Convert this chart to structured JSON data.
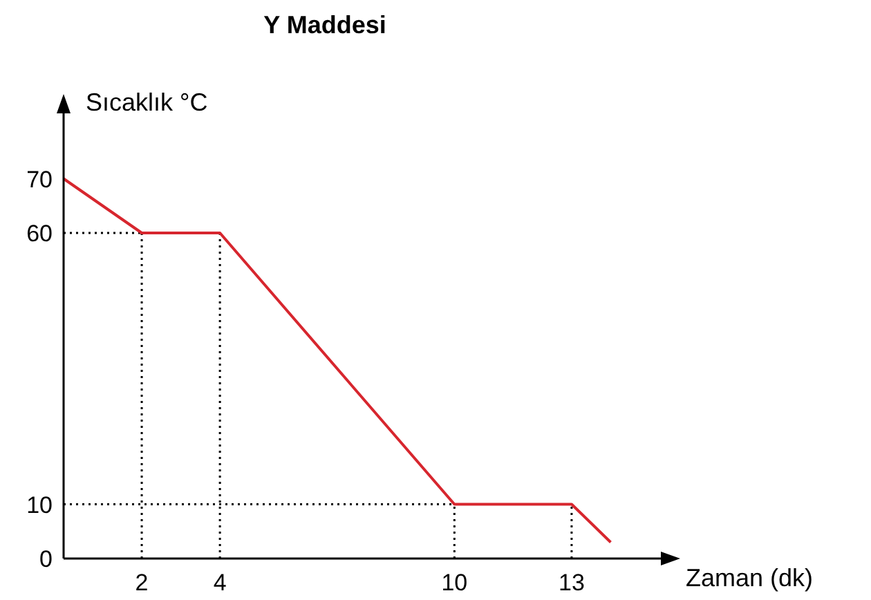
{
  "chart_data": {
    "type": "line",
    "title": "Y Maddesi",
    "xlabel": "Zaman (dk)",
    "ylabel": "Sıcaklık °C",
    "xlim": [
      0,
      15
    ],
    "ylim": [
      0,
      80
    ],
    "xticks": [
      2,
      4,
      10,
      13
    ],
    "yticks": [
      0,
      10,
      60,
      70
    ],
    "marker": "none",
    "series": [
      {
        "color": "#d7262e",
        "x": [
          0,
          2,
          4,
          10,
          13,
          14
        ],
        "values": [
          70,
          60,
          60,
          10,
          10,
          3
        ]
      }
    ],
    "ref_lines": [
      {
        "axis": "x",
        "value": 2,
        "color": "#000000",
        "line_style": "dotted"
      },
      {
        "axis": "x",
        "value": 4,
        "color": "#000000",
        "line_style": "dotted"
      },
      {
        "axis": "x",
        "value": 10,
        "color": "#000000",
        "line_style": "dotted"
      },
      {
        "axis": "x",
        "value": 13,
        "color": "#000000",
        "line_style": "dotted"
      },
      {
        "axis": "y",
        "value": 60,
        "color": "#000000",
        "line_style": "dotted"
      },
      {
        "axis": "y",
        "value": 10,
        "color": "#000000",
        "line_style": "dotted"
      }
    ]
  }
}
